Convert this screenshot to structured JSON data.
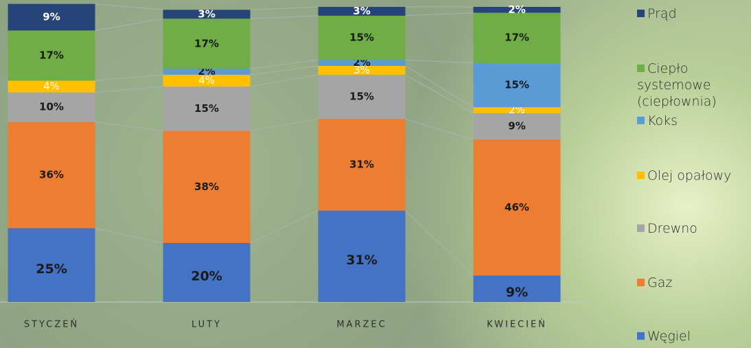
{
  "chart_data": {
    "type": "stacked_bar",
    "categories": [
      "STYCZEŃ",
      "LUTY",
      "MARZEC",
      "KWIECIEŃ"
    ],
    "ylim": [
      0,
      100
    ],
    "series": [
      {
        "name": "Węgiel",
        "color": "#4472c4",
        "label_color": "#1a1a1a",
        "values": [
          25,
          20,
          31,
          9
        ],
        "value_labels": [
          "25%",
          "20%",
          "31%",
          "9%"
        ]
      },
      {
        "name": "Gaz",
        "color": "#ed7d31",
        "label_color": "#1a1a1a",
        "values": [
          36,
          38,
          31,
          46
        ],
        "value_labels": [
          "36%",
          "38%",
          "31%",
          "46%"
        ]
      },
      {
        "name": "Drewno",
        "color": "#a5a5a5",
        "label_color": "#1a1a1a",
        "values": [
          10,
          15,
          15,
          9
        ],
        "value_labels": [
          "10%",
          "15%",
          "15%",
          "9%"
        ]
      },
      {
        "name": "Olej opałowy",
        "color": "#ffc000",
        "label_color": "#ffffff",
        "values": [
          4,
          4,
          3,
          2
        ],
        "value_labels": [
          "4%",
          "4%",
          "3%",
          "2%"
        ]
      },
      {
        "name": "Koks",
        "color": "#5b9bd5",
        "label_color": "#1a1a1a",
        "values": [
          null,
          2,
          2,
          15
        ],
        "value_labels": [
          null,
          "2%",
          "2%",
          "15%"
        ]
      },
      {
        "name": "Ciepło systemowe (ciepłownia)",
        "color": "#70ad47",
        "label_color": "#1a1a1a",
        "values": [
          17,
          17,
          15,
          17
        ],
        "value_labels": [
          "17%",
          "17%",
          "15%",
          "17%"
        ]
      },
      {
        "name": "Prąd",
        "color": "#264478",
        "label_color": "#ffffff",
        "values": [
          9,
          3,
          3,
          2
        ],
        "value_labels": [
          "9%",
          "3%",
          "3%",
          "2%"
        ]
      }
    ]
  }
}
